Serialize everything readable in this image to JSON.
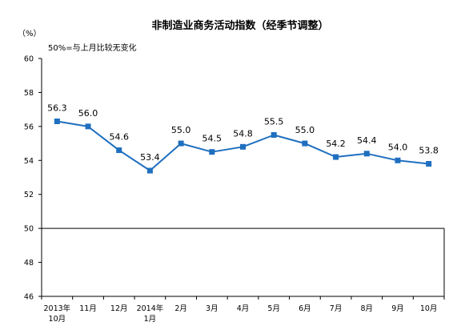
{
  "chart_data": {
    "type": "line",
    "title": "非制造业商务活动指数（经季节调整）",
    "unit": "（%）",
    "note": "50%=与上月比较无变化",
    "x": [
      "2013年|10月",
      "11月",
      "12月",
      "2014年|1月",
      "2月",
      "3月",
      "4月",
      "5月",
      "6月",
      "7月",
      "8月",
      "9月",
      "10月"
    ],
    "series": [
      {
        "values": [
          56.3,
          56.0,
          54.6,
          53.4,
          55.0,
          54.5,
          54.8,
          55.5,
          55.0,
          54.2,
          54.4,
          54.0,
          53.8
        ],
        "labels": [
          "56.3",
          "56.0",
          "54.6",
          "53.4",
          "55.0",
          "54.5",
          "54.8",
          "55.5",
          "55.0",
          "54.2",
          "54.4",
          "54.0",
          "53.8"
        ]
      }
    ],
    "ylim": [
      46,
      60
    ],
    "yticks": [
      60,
      58,
      56,
      54,
      52,
      50,
      48,
      46
    ],
    "reference_line": 50,
    "line_color": "#1f6fbf"
  }
}
